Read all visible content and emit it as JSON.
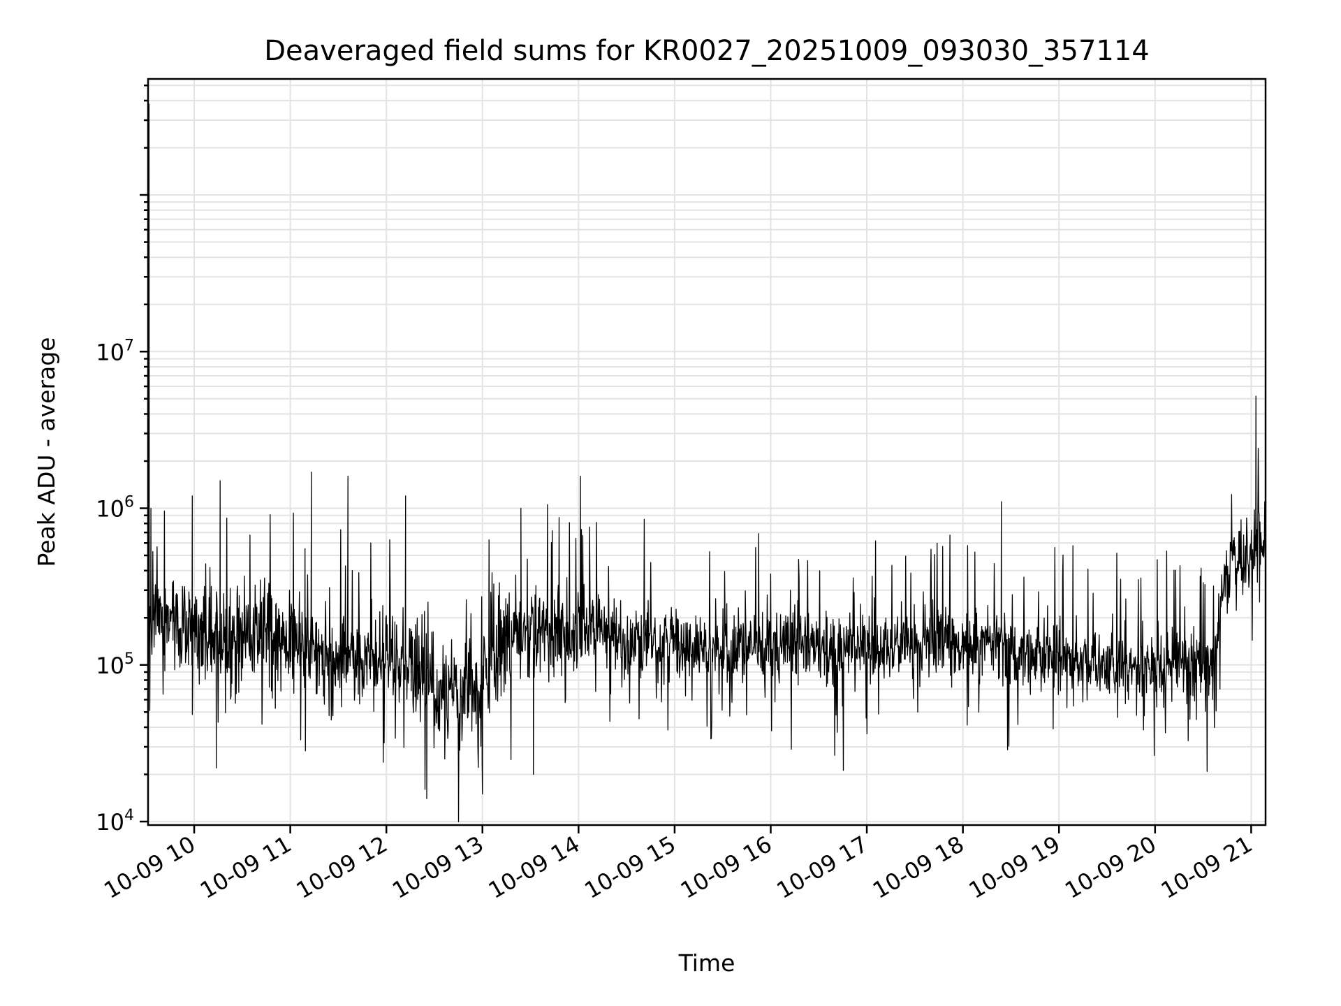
{
  "chart_data": {
    "type": "line",
    "title": "Deaveraged field sums for KR0027_20251009_093030_357114",
    "xlabel": "Time",
    "ylabel": "Peak ADU - average",
    "yscale": "log",
    "ylim": [
      9500,
      550000000
    ],
    "xlim_hours": [
      9.52,
      21.15
    ],
    "grid": true,
    "legend": "none",
    "line_color": "#000000",
    "x_ticks": [
      {
        "value": 10,
        "label": "10-09 10"
      },
      {
        "value": 11,
        "label": "10-09 11"
      },
      {
        "value": 12,
        "label": "10-09 12"
      },
      {
        "value": 13,
        "label": "10-09 13"
      },
      {
        "value": 14,
        "label": "10-09 14"
      },
      {
        "value": 15,
        "label": "10-09 15"
      },
      {
        "value": 16,
        "label": "10-09 16"
      },
      {
        "value": 17,
        "label": "10-09 17"
      },
      {
        "value": 18,
        "label": "10-09 18"
      },
      {
        "value": 19,
        "label": "10-09 19"
      },
      {
        "value": 20,
        "label": "10-09 20"
      },
      {
        "value": 21,
        "label": "10-09 21"
      }
    ],
    "y_ticks": [
      {
        "value": 10000,
        "base": "10",
        "exp": "4"
      },
      {
        "value": 100000,
        "base": "10",
        "exp": "5"
      },
      {
        "value": 1000000,
        "base": "10",
        "exp": "6"
      },
      {
        "value": 10000000,
        "base": "10",
        "exp": "7"
      }
    ],
    "series": [
      {
        "name": "Peak ADU - average",
        "x_hours": [
          9.52,
          9.6,
          9.75,
          9.9,
          10.0,
          10.25,
          10.5,
          10.75,
          11.0,
          11.25,
          11.5,
          11.75,
          12.0,
          12.25,
          12.5,
          12.75,
          12.95,
          13.05,
          13.25,
          13.5,
          13.75,
          13.9,
          14.0,
          14.2,
          14.3,
          14.5,
          15.0,
          15.5,
          16.0,
          16.5,
          17.0,
          17.5,
          18.0,
          18.4,
          18.5,
          19.0,
          19.5,
          20.0,
          20.5,
          20.6,
          20.7,
          20.8,
          21.0,
          21.15
        ],
        "center": [
          200000,
          210000,
          190000,
          170000,
          160000,
          150000,
          170000,
          160000,
          140000,
          130000,
          120000,
          110000,
          110000,
          100000,
          80000,
          70000,
          65000,
          80000,
          150000,
          170000,
          160000,
          150000,
          180000,
          200000,
          150000,
          140000,
          130000,
          120000,
          130000,
          125000,
          130000,
          135000,
          140000,
          140000,
          120000,
          110000,
          95000,
          100000,
          100000,
          110000,
          330000,
          430000,
          520000,
          560000
        ],
        "spikes": [
          {
            "x": 9.53,
            "y": 380000000
          },
          {
            "x": 9.55,
            "y": 1000000
          },
          {
            "x": 9.98,
            "y": 1200000
          },
          {
            "x": 10.27,
            "y": 1500000
          },
          {
            "x": 11.22,
            "y": 1700000
          },
          {
            "x": 11.6,
            "y": 1600000
          },
          {
            "x": 12.2,
            "y": 1200000
          },
          {
            "x": 13.4,
            "y": 1000000
          },
          {
            "x": 14.02,
            "y": 1600000
          },
          {
            "x": 18.4,
            "y": 1100000
          },
          {
            "x": 21.05,
            "y": 5200000
          },
          {
            "x": 12.42,
            "y": 14000
          },
          {
            "x": 13.0,
            "y": 15000
          },
          {
            "x": 12.75,
            "y": 19000
          },
          {
            "x": 10.23,
            "y": 22000
          },
          {
            "x": 13.53,
            "y": 20000
          }
        ]
      }
    ]
  }
}
